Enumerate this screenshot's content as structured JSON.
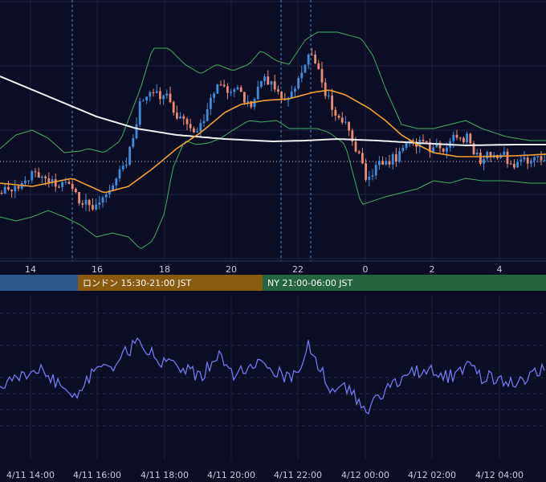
{
  "chart_data": {
    "type": "candlestick",
    "main_panel": {
      "x_tick_labels": [
        "14",
        "16",
        "18",
        "20",
        "22",
        "0",
        "2",
        "4"
      ],
      "grid": true,
      "indicators": [
        "bollinger-bands",
        "moving-average-short",
        "moving-average-long"
      ],
      "horizontal_reference": "dotted"
    },
    "sessions": [
      {
        "label": "",
        "color": "#2c5a8c"
      },
      {
        "label": "ロンドン 15:30-21:00 JST",
        "color": "#8a5a10"
      },
      {
        "label": "NY 21:00-06:00 JST",
        "color": "#236640"
      }
    ],
    "oscillator_panel": {
      "line_color": "#7078f0",
      "x_tick_labels": [
        "4/11 14:00",
        "4/11 16:00",
        "4/11 18:00",
        "4/11 20:00",
        "4/11 22:00",
        "4/12 00:00",
        "4/12 02:00",
        "4/12 04:00"
      ]
    },
    "colors": {
      "up": "#3d8ee0",
      "down": "#ee8a72",
      "ma_short": "#f5a030",
      "ma_long": "#f0f0f0",
      "bands": "#3fae5a"
    }
  }
}
